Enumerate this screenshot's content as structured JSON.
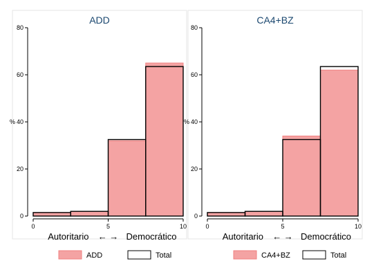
{
  "chart_data": [
    {
      "type": "bar",
      "title": "ADD",
      "ylabel": "%",
      "xlabel_left": "Autoritario",
      "xlabel_arrows": "←    →",
      "xlabel_right": "Democrático",
      "xlim": [
        0,
        10
      ],
      "ylim": [
        0,
        80
      ],
      "xticks": [
        0,
        5,
        10
      ],
      "yticks": [
        0,
        20,
        40,
        60,
        80
      ],
      "bins": [
        [
          0,
          2.5
        ],
        [
          2.5,
          5
        ],
        [
          5,
          7.5
        ],
        [
          7.5,
          10
        ]
      ],
      "series": [
        {
          "name": "ADD",
          "values": [
            1.5,
            2.0,
            32.0,
            65.0
          ],
          "style": "filled",
          "color": "#f4a3a3"
        },
        {
          "name": "Total",
          "values": [
            1.5,
            2.0,
            32.5,
            63.5
          ],
          "style": "outline",
          "color": "#000000"
        }
      ],
      "legend": {
        "position": "bottom",
        "items": [
          "ADD",
          "Total"
        ]
      },
      "grid": false
    },
    {
      "type": "bar",
      "title": "CA4+BZ",
      "ylabel": "%",
      "xlabel_left": "Autoritario",
      "xlabel_arrows": "←    →",
      "xlabel_right": "Democrático",
      "xlim": [
        0,
        10
      ],
      "ylim": [
        0,
        80
      ],
      "xticks": [
        0,
        5,
        10
      ],
      "yticks": [
        0,
        20,
        40,
        60,
        80
      ],
      "bins": [
        [
          0,
          2.5
        ],
        [
          2.5,
          5
        ],
        [
          5,
          7.5
        ],
        [
          7.5,
          10
        ]
      ],
      "series": [
        {
          "name": "CA4+BZ",
          "values": [
            1.5,
            2.0,
            34.0,
            62.0
          ],
          "style": "filled",
          "color": "#f4a3a3"
        },
        {
          "name": "Total",
          "values": [
            1.5,
            2.0,
            32.5,
            63.5
          ],
          "style": "outline",
          "color": "#000000"
        }
      ],
      "legend": {
        "position": "bottom",
        "items": [
          "CA4+BZ",
          "Total"
        ]
      },
      "grid": false
    }
  ]
}
